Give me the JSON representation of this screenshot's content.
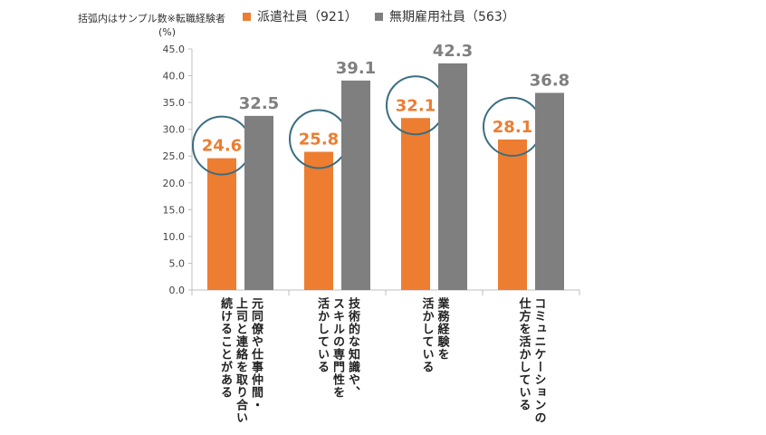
{
  "header": {
    "note": "括弧内はサンプル数※転職経験者"
  },
  "chart_data": {
    "type": "bar",
    "ylabel": "(%)",
    "ylim": [
      0,
      45
    ],
    "yticks": [
      "0.0",
      "5.0",
      "10.0",
      "15.0",
      "20.0",
      "25.0",
      "30.0",
      "35.0",
      "40.0",
      "45.0"
    ],
    "legend_position": "top",
    "categories": [
      "元同僚や仕事仲間・\n上司と連絡を取り合い\n続けることがある",
      "技術的な知識や、\nスキルの専門性を\n活かしている",
      "業務経験を\n活かしている",
      "コミュニケーションの\n仕方を活かしている"
    ],
    "series": [
      {
        "name": "派遣社員（921）",
        "values": [
          24.6,
          25.8,
          32.1,
          28.1
        ],
        "labels": [
          "24.6",
          "25.8",
          "32.1",
          "28.1"
        ],
        "color": "#ED7D31",
        "highlighted": true
      },
      {
        "name": "無期雇用社員（563）",
        "values": [
          32.5,
          39.1,
          42.3,
          36.8
        ],
        "labels": [
          "32.5",
          "39.1",
          "42.3",
          "36.8"
        ],
        "color": "#7F7F7F",
        "highlighted": false
      }
    ],
    "highlight_circle_color": "#3B6E80",
    "grid": false
  }
}
